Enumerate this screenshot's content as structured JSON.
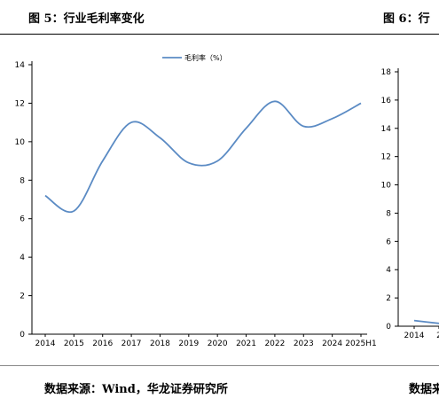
{
  "left_figure": {
    "title": "图 5：行业毛利率变化",
    "source": "数据来源：Wind，华龙证券研究所"
  },
  "right_figure": {
    "title": "图 6：行",
    "source": "数据来"
  },
  "chart_data": [
    {
      "type": "line",
      "title": "",
      "xlabel": "",
      "ylabel": "",
      "categories": [
        "2014",
        "2015",
        "2016",
        "2017",
        "2018",
        "2019",
        "2020",
        "2021",
        "2022",
        "2023",
        "2024",
        "2025H1"
      ],
      "series": [
        {
          "name": "毛利率（%）",
          "values": [
            7.2,
            6.4,
            9.0,
            11.0,
            10.2,
            8.9,
            9.0,
            10.7,
            12.1,
            10.8,
            11.2,
            12.0
          ],
          "color": "#5b8bc4"
        }
      ],
      "ylim": [
        0,
        14
      ],
      "yticks": [
        0,
        2,
        4,
        6,
        8,
        10,
        12,
        14
      ],
      "legend_position": "top",
      "grid": false
    },
    {
      "type": "line",
      "title": "",
      "xlabel": "",
      "ylabel": "",
      "categories": [
        "2014",
        "2"
      ],
      "series": [
        {
          "values": [
            0.4,
            0.2
          ],
          "color": "#5b8bc4"
        }
      ],
      "ylim": [
        0,
        18
      ],
      "yticks": [
        0,
        2,
        4,
        6,
        8,
        10,
        12,
        14,
        16,
        18
      ],
      "grid": false,
      "note": "partially visible, cropped at right edge"
    }
  ]
}
